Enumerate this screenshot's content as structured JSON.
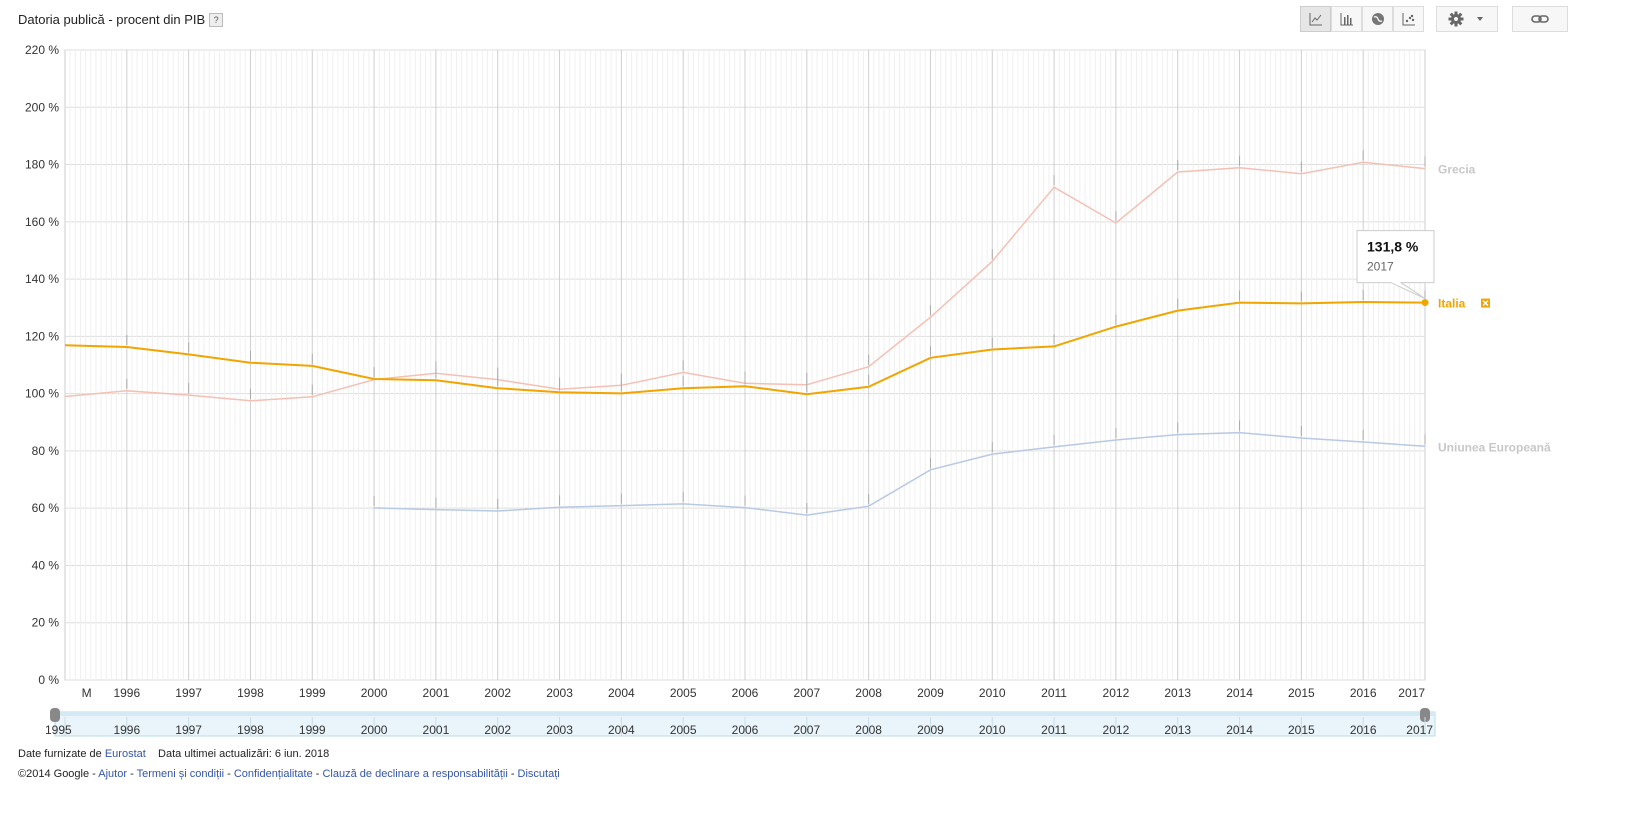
{
  "header": {
    "title": "Datoria publică - procent din PIB",
    "help_label": "?"
  },
  "toolbar": {
    "buttons": [
      "line-chart-icon",
      "bar-chart-icon",
      "globe-map-icon",
      "scatter-chart-icon",
      "gear-icon",
      "link-icon"
    ]
  },
  "chart_data": {
    "type": "line",
    "title": "Datoria publică - procent din PIB",
    "ylim": [
      0,
      220
    ],
    "y_ticks": [
      "0 %",
      "20 %",
      "40 %",
      "60 %",
      "80 %",
      "100 %",
      "120 %",
      "140 %",
      "160 %",
      "180 %",
      "200 %",
      "220 %"
    ],
    "x_tick_labels": [
      "M",
      "1996",
      "1997",
      "1998",
      "1999",
      "2000",
      "2001",
      "2002",
      "2003",
      "2004",
      "2005",
      "2006",
      "2007",
      "2008",
      "2009",
      "2010",
      "2011",
      "2012",
      "2013",
      "2014",
      "2015",
      "2016",
      "2017"
    ],
    "x": [
      1995,
      1996,
      1997,
      1998,
      1999,
      2000,
      2001,
      2002,
      2003,
      2004,
      2005,
      2006,
      2007,
      2008,
      2009,
      2010,
      2011,
      2012,
      2013,
      2014,
      2015,
      2016,
      2017
    ],
    "series": [
      {
        "name": "Grecia",
        "color": "#f4c0b4",
        "values": [
          99,
          101,
          99.5,
          97.5,
          98.9,
          104.9,
          107.1,
          104.9,
          101.5,
          102.9,
          107.4,
          103.6,
          103.1,
          109.4,
          126.7,
          146.2,
          172.1,
          159.6,
          177.4,
          178.9,
          176.8,
          180.8,
          178.6
        ]
      },
      {
        "name": "Italia",
        "color": "#f0a500",
        "values": [
          116.9,
          116.3,
          113.7,
          110.8,
          109.7,
          105.1,
          104.7,
          101.9,
          100.5,
          100.1,
          101.9,
          102.6,
          99.8,
          102.4,
          112.5,
          115.4,
          116.5,
          123.4,
          129.0,
          131.8,
          131.5,
          132.0,
          131.8
        ]
      },
      {
        "name": "Uniunea Europeană",
        "color": "#b7c9e4",
        "values": [
          null,
          null,
          null,
          null,
          null,
          60.1,
          59.5,
          59.0,
          60.3,
          60.9,
          61.5,
          60.2,
          57.6,
          60.7,
          73.4,
          78.9,
          81.4,
          83.8,
          85.7,
          86.4,
          84.5,
          83.1,
          81.6
        ]
      }
    ],
    "highlight": {
      "series": "Italia",
      "value_label": "131,8 %",
      "year_label": "2017"
    },
    "range_slider": {
      "start_label": "1995",
      "end_label": "2017",
      "labels": [
        "1995",
        "1996",
        "1997",
        "1998",
        "1999",
        "2000",
        "2001",
        "2002",
        "2003",
        "2004",
        "2005",
        "2006",
        "2007",
        "2008",
        "2009",
        "2010",
        "2011",
        "2012",
        "2013",
        "2014",
        "2015",
        "2016",
        "2017"
      ]
    }
  },
  "footer": {
    "source_prefix": "Date furnizate de ",
    "source_link": "Eurostat",
    "updated": "Data ultimei actualizări: 6 iun. 2018",
    "copyright": "©2014 Google - ",
    "links": [
      "Ajutor",
      "Termeni și condiții",
      "Confidențialitate",
      "Clauză de declinare a responsabilității",
      "Discutați"
    ],
    "separator": " - "
  }
}
